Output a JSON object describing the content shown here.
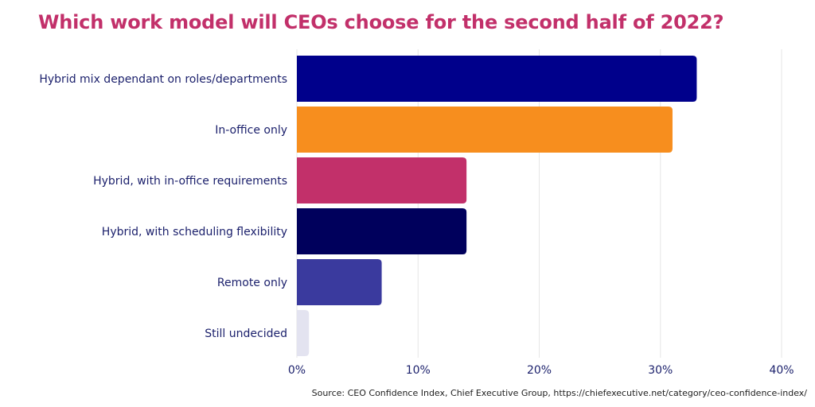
{
  "title": "Which work model will CEOs choose for the second half of 2022?",
  "source": "Source: CEO Confidence Index, Chief Executive Group, https://chiefexecutive.net/category/ceo-confidence-index/",
  "chart_data": {
    "type": "bar",
    "orientation": "horizontal",
    "title": "Which work model will CEOs choose for the second half of 2022?",
    "categories": [
      "Hybrid mix dependant on roles/departments",
      "In-office only",
      "Hybrid, with in-office requirements",
      "Hybrid, with scheduling flexibility",
      "Remote only",
      "Still undecided"
    ],
    "values": [
      33,
      31,
      14,
      14,
      7,
      1
    ],
    "colors": [
      "#00008b",
      "#f78e1e",
      "#c2306a",
      "#00005c",
      "#3a3a9e",
      "#e3e3f0"
    ],
    "xlim": [
      0,
      40
    ],
    "xticks": [
      0,
      10,
      20,
      30,
      40
    ],
    "xtick_labels": [
      "0%",
      "10%",
      "20%",
      "30%",
      "40%"
    ],
    "grid": true,
    "legend": "none"
  }
}
